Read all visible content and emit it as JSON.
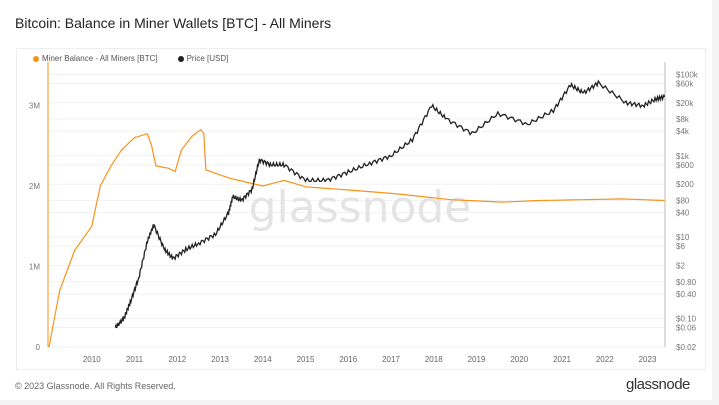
{
  "title": "Bitcoin: Balance in Miner Wallets [BTC] - All Miners",
  "footer": "© 2023 Glassnode. All Rights Reserved.",
  "logo": "glassnode",
  "watermark": "glassnode",
  "chart_data": {
    "type": "line",
    "title": "Bitcoin: Balance in Miner Wallets [BTC] - All Miners",
    "legend_position": "top-left",
    "grid": true,
    "x_ticks": [
      "2010",
      "2011",
      "2012",
      "2013",
      "2014",
      "2015",
      "2016",
      "2017",
      "2018",
      "2019",
      "2020",
      "2021",
      "2022",
      "2023"
    ],
    "y_left": {
      "ticks": [
        "0",
        "1M",
        "2M",
        "3M"
      ],
      "range": [
        0,
        3500000
      ]
    },
    "y_right": {
      "scale": "log",
      "ticks": [
        "$0.02",
        "$0.06",
        "$0.10",
        "$0.40",
        "$0.80",
        "$2",
        "$6",
        "$10",
        "$40",
        "$80",
        "$200",
        "$600",
        "$1k",
        "$4k",
        "$8k",
        "$20k",
        "$60k",
        "$100k"
      ],
      "range": [
        0.02,
        100000
      ]
    },
    "series": [
      {
        "name": "Miner Balance - All Miners [BTC]",
        "color": "#f7931a",
        "axis": "left",
        "x": [
          2009.0,
          2009.25,
          2009.6,
          2010.0,
          2010.2,
          2010.45,
          2010.7,
          2011.0,
          2011.3,
          2011.4,
          2011.5,
          2011.8,
          2011.95,
          2012.1,
          2012.35,
          2012.55,
          2012.62,
          2012.67,
          2013.2,
          2014.0,
          2014.5,
          2015.0,
          2016.0,
          2017.2,
          2018.4,
          2019.6,
          2020.5,
          2021.5,
          2022.4,
          2023.4
        ],
        "values": [
          0,
          700000,
          1200000,
          1500000,
          2000000,
          2250000,
          2450000,
          2600000,
          2650000,
          2500000,
          2250000,
          2220000,
          2180000,
          2450000,
          2620000,
          2700000,
          2650000,
          2200000,
          2100000,
          2000000,
          2070000,
          1990000,
          1950000,
          1900000,
          1830000,
          1800000,
          1820000,
          1830000,
          1840000,
          1820000
        ]
      },
      {
        "name": "Price [USD]",
        "color": "#222222",
        "axis": "right",
        "x": [
          2010.55,
          2010.75,
          2010.9,
          2011.1,
          2011.3,
          2011.45,
          2011.7,
          2011.9,
          2012.2,
          2012.5,
          2012.9,
          2013.2,
          2013.3,
          2013.5,
          2013.75,
          2013.92,
          2014.2,
          2014.5,
          2015.0,
          2015.5,
          2016.0,
          2016.5,
          2017.0,
          2017.5,
          2017.95,
          2018.3,
          2018.9,
          2019.5,
          2020.2,
          2020.8,
          2021.2,
          2021.5,
          2021.85,
          2022.5,
          2022.9,
          2023.2,
          2023.4
        ],
        "values": [
          0.06,
          0.1,
          0.25,
          1,
          8,
          20,
          5,
          3,
          5,
          7,
          12,
          40,
          100,
          80,
          150,
          800,
          600,
          600,
          250,
          250,
          400,
          650,
          1000,
          2500,
          17000,
          8000,
          3500,
          11000,
          6000,
          13000,
          55000,
          35000,
          62000,
          20000,
          17000,
          25000,
          28000
        ]
      }
    ]
  }
}
